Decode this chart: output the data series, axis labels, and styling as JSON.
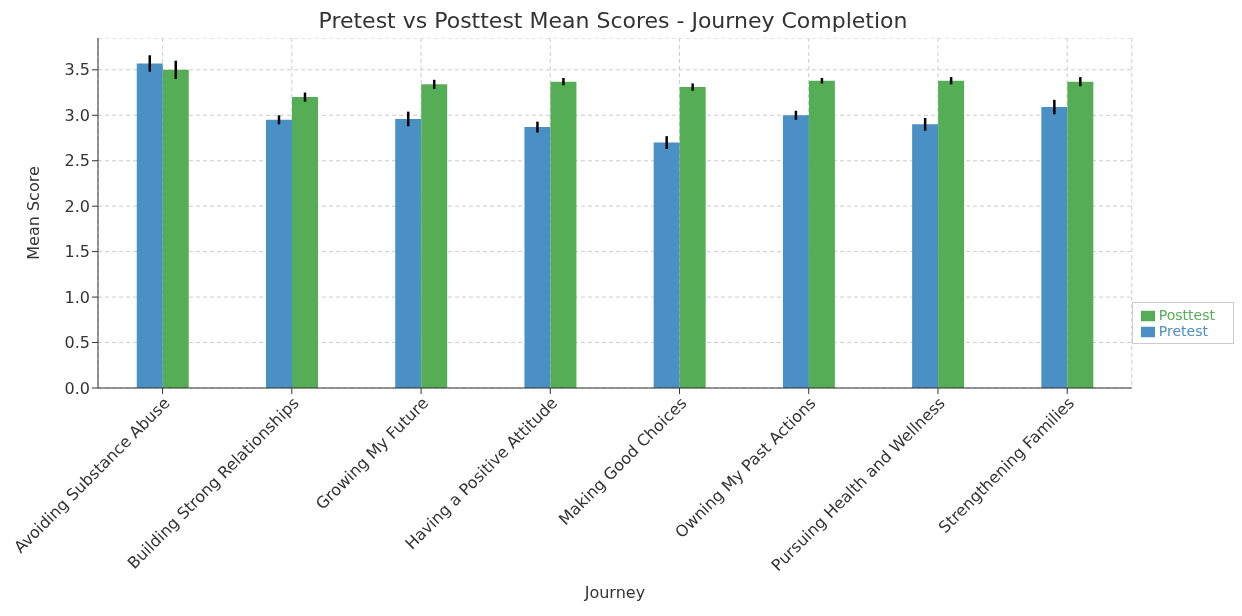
{
  "chart_data": {
    "type": "bar",
    "title": "Pretest vs Posttest Mean Scores - Journey Completion",
    "xlabel": "Journey",
    "ylabel": "Mean Score",
    "categories": [
      "Avoiding Substance Abuse",
      "Building Strong Relationships",
      "Growing My Future",
      "Having a Positive Attitude",
      "Making Good Choices",
      "Owning My Past Actions",
      "Pursuing Health and Wellness",
      "Strengthening Families"
    ],
    "series": [
      {
        "name": "Pretest",
        "color": "#4a90c4",
        "values": [
          3.57,
          2.95,
          2.96,
          2.87,
          2.7,
          3.0,
          2.9,
          3.09
        ],
        "errors": [
          0.09,
          0.05,
          0.08,
          0.06,
          0.07,
          0.05,
          0.07,
          0.08
        ]
      },
      {
        "name": "Posttest",
        "color": "#55ae55",
        "values": [
          3.5,
          3.2,
          3.34,
          3.37,
          3.31,
          3.38,
          3.38,
          3.37
        ],
        "errors": [
          0.1,
          0.05,
          0.05,
          0.04,
          0.04,
          0.03,
          0.04,
          0.05
        ]
      }
    ],
    "ylim": [
      0,
      3.85
    ],
    "yticks": [
      {
        "value": 0,
        "label": "0.0"
      },
      {
        "value": 0.5,
        "label": "0.5"
      },
      {
        "value": 1,
        "label": "1.0"
      },
      {
        "value": 1.5,
        "label": "1.5"
      },
      {
        "value": 2,
        "label": "2.0"
      },
      {
        "value": 2.5,
        "label": "2.5"
      },
      {
        "value": 3,
        "label": "3.0"
      },
      {
        "value": 3.5,
        "label": "3.5"
      }
    ],
    "grid": true,
    "legend": "right"
  }
}
